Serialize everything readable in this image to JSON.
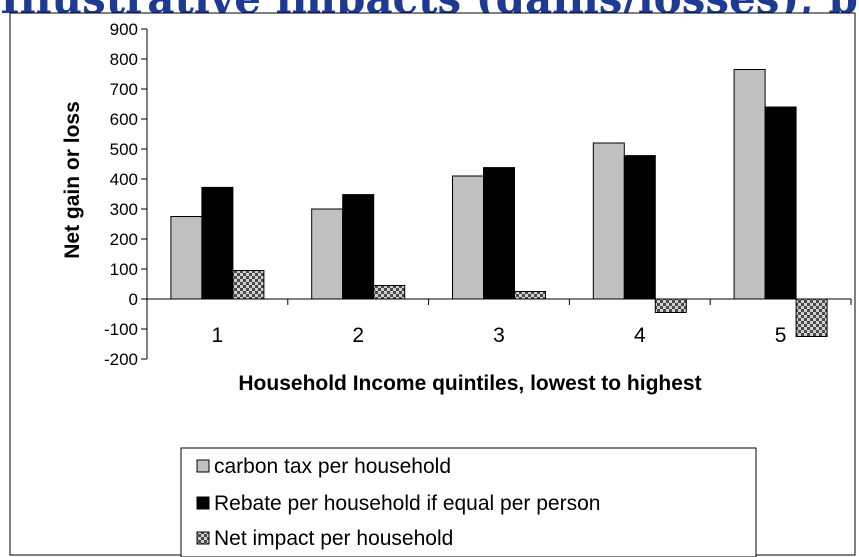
{
  "page": {
    "headline": "Illustrative impacts (gains/losses), by household income quintile, from a tax shift with equal per-person rebates"
  },
  "colors": {
    "carbon_tax": "#c0c0c0",
    "rebate": "#000000",
    "net_impact_pattern": "checker-gray"
  },
  "chart_data": {
    "type": "bar",
    "categories": [
      "1",
      "2",
      "3",
      "4",
      "5"
    ],
    "series": [
      {
        "name": "carbon tax per household",
        "values": [
          275,
          300,
          410,
          520,
          765
        ]
      },
      {
        "name": "Rebate per household if equal per person",
        "values": [
          372,
          348,
          438,
          478,
          640
        ]
      },
      {
        "name": "Net impact per household",
        "values": [
          95,
          45,
          25,
          -45,
          -125
        ]
      }
    ],
    "xlabel": "Household Income quintiles, lowest to highest",
    "ylabel": "Net gain or loss",
    "ylim": [
      -200,
      900
    ],
    "yticks": [
      900,
      800,
      700,
      600,
      500,
      400,
      300,
      200,
      100,
      0,
      -100,
      -200
    ],
    "grid": false,
    "legend_position": "bottom"
  }
}
